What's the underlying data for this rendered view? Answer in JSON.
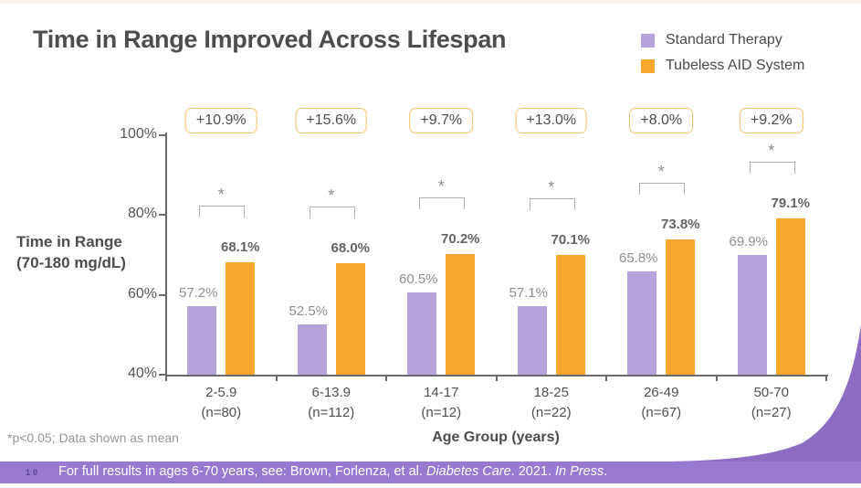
{
  "title": "Time in Range Improved Across Lifespan",
  "legend": [
    {
      "label": "Standard Therapy",
      "color": "#b7a3dc"
    },
    {
      "label": "Tubeless AID System",
      "color": "#f8a72d"
    }
  ],
  "chart_data": {
    "type": "bar",
    "title": "Time in Range Improved Across Lifespan",
    "xlabel": "Age Group (years)",
    "ylabel": "Time in Range (70-180 mg/dL)",
    "ylabel_lines": [
      "Time in Range",
      "(70-180 mg/dL)"
    ],
    "ylim": [
      40,
      100
    ],
    "yticks": [
      {
        "label": "100%",
        "value": 100
      },
      {
        "label": "80%",
        "value": 80
      },
      {
        "label": "60%",
        "value": 60
      },
      {
        "label": "40%",
        "value": 40
      }
    ],
    "categories": [
      {
        "label": "2-5.9",
        "n": "(n=80)"
      },
      {
        "label": "6-13.9",
        "n": "(n=112)"
      },
      {
        "label": "14-17",
        "n": "(n=12)"
      },
      {
        "label": "18-25",
        "n": "(n=22)"
      },
      {
        "label": "26-49",
        "n": "(n=67)"
      },
      {
        "label": "50-70",
        "n": "(n=27)"
      }
    ],
    "series": [
      {
        "name": "Standard Therapy",
        "color": "#b7a3dc",
        "values": [
          57.2,
          52.5,
          60.5,
          57.1,
          65.8,
          69.9
        ]
      },
      {
        "name": "Tubeless AID System",
        "color": "#f8a72d",
        "values": [
          68.1,
          68.0,
          70.2,
          70.1,
          73.8,
          79.1
        ]
      }
    ],
    "differences": [
      "+10.9%",
      "+15.6%",
      "+9.7%",
      "+13.0%",
      "+8.0%",
      "+9.2%"
    ],
    "significance_marker": "*",
    "legend_position": "top-right",
    "grid": false
  },
  "footnote": "*p<0.05; Data shown as mean",
  "footer": {
    "page": "10",
    "parts": [
      {
        "text": "For full results in ages 6-70 years, see: Brown, Forlenza, et al. ",
        "italic": false
      },
      {
        "text": "Diabetes Care",
        "italic": true
      },
      {
        "text": ". 2021. ",
        "italic": false
      },
      {
        "text": "In Press",
        "italic": true
      },
      {
        "text": ".",
        "italic": false
      }
    ]
  },
  "colors": {
    "standard_therapy": "#b7a3dc",
    "aid_system": "#f8a72d",
    "diff_box_border": "#f3c36a",
    "bracket": "#b0b0b0",
    "axis": "#6a6a6a",
    "footer_bar": "#9879d1",
    "swoosh": "#8d6cc4",
    "value_label_gray": "#8f8f8f",
    "value_label_dark": "#646464"
  }
}
